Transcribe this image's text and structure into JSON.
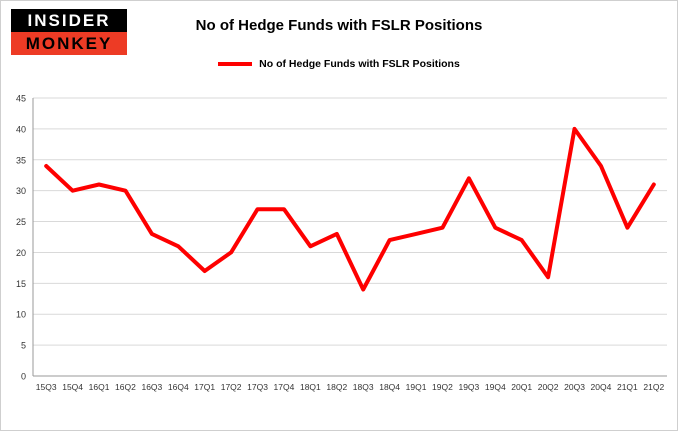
{
  "header": {
    "logo": {
      "line1": "INSIDER",
      "line2": "MONKEY"
    },
    "title": "No of Hedge Funds with FSLR Positions"
  },
  "legend": {
    "label": "No of Hedge Funds with FSLR Positions"
  },
  "colors": {
    "series_line": "#fe0000",
    "gridline": "#d9d9d9",
    "axis": "#9a9a9a",
    "tick_text": "#333333",
    "logo_top_bg": "#000000",
    "logo_bottom_bg": "#ed3b25"
  },
  "chart_data": {
    "type": "line",
    "title": "No of Hedge Funds with FSLR Positions",
    "xlabel": "",
    "ylabel": "",
    "ylim": [
      0,
      45
    ],
    "ytick_step": 5,
    "grid": true,
    "legend_position": "top",
    "categories": [
      "15Q3",
      "15Q4",
      "16Q1",
      "16Q2",
      "16Q3",
      "16Q4",
      "17Q1",
      "17Q2",
      "17Q3",
      "17Q4",
      "18Q1",
      "18Q2",
      "18Q3",
      "18Q4",
      "19Q1",
      "19Q2",
      "19Q3",
      "19Q4",
      "20Q1",
      "20Q2",
      "20Q3",
      "20Q4",
      "21Q1",
      "21Q2"
    ],
    "series": [
      {
        "name": "No of Hedge Funds with FSLR Positions",
        "color": "#fe0000",
        "values": [
          34,
          30,
          31,
          30,
          23,
          21,
          17,
          20,
          27,
          27,
          21,
          23,
          14,
          22,
          23,
          24,
          32,
          24,
          22,
          16,
          40,
          34,
          24,
          31
        ]
      }
    ]
  }
}
